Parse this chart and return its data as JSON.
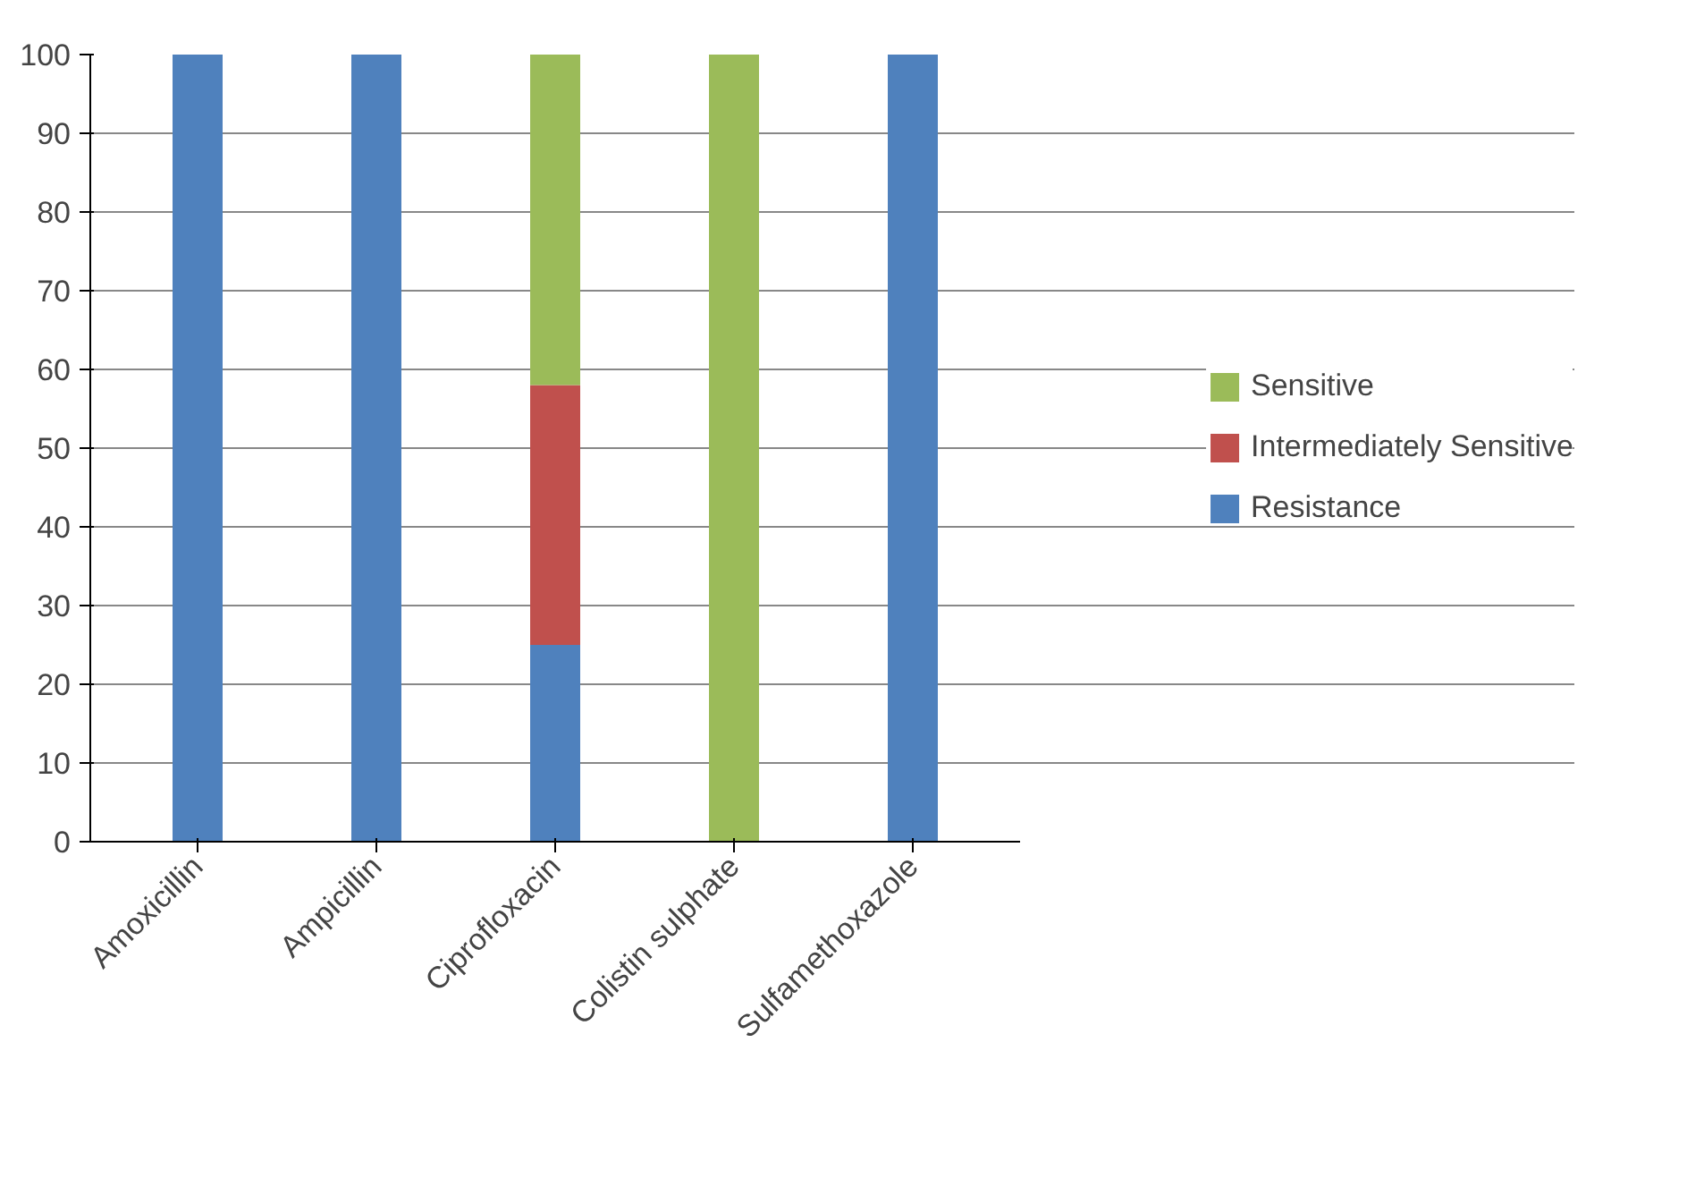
{
  "chart_data": {
    "type": "bar",
    "stacked": true,
    "categories": [
      "Amoxicillin",
      "Ampicillin",
      "Ciprofloxacin",
      "Colistin sulphate",
      "Sulfamethoxazole"
    ],
    "series": [
      {
        "name": "Resistance",
        "color": "#4f81bd",
        "values": [
          100,
          100,
          25,
          0,
          100
        ]
      },
      {
        "name": "Intermediately Sensitive",
        "color": "#c0504d",
        "values": [
          0,
          0,
          33,
          0,
          0
        ]
      },
      {
        "name": "Sensitive",
        "color": "#9bbb59",
        "values": [
          0,
          0,
          42,
          100,
          0
        ]
      }
    ],
    "ylim": [
      0,
      100
    ],
    "yticks": [
      0,
      10,
      20,
      30,
      40,
      50,
      60,
      70,
      80,
      90,
      100
    ],
    "grid": "y",
    "legend": "right"
  }
}
